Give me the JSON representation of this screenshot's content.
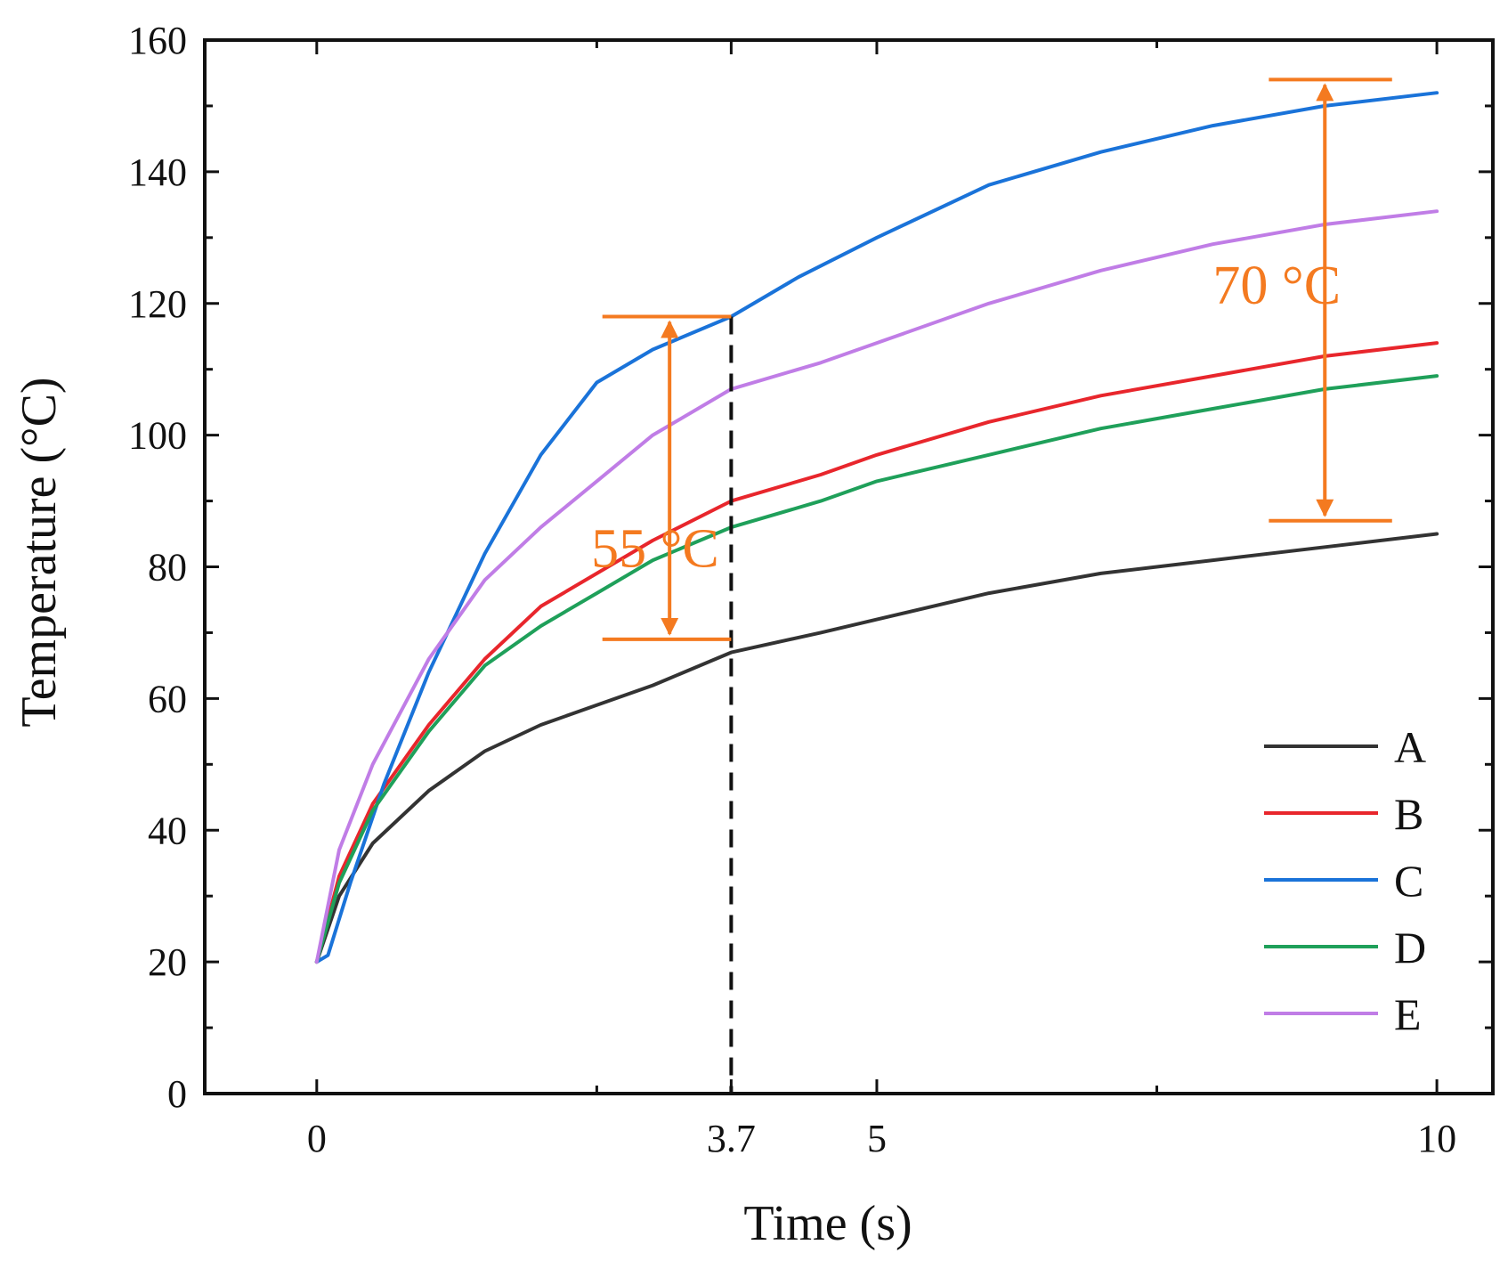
{
  "chart_data": {
    "type": "line",
    "title": "",
    "xlabel": "Time (s)",
    "ylabel": "Temperature (°C)",
    "xlim": [
      -1,
      10.5
    ],
    "ylim": [
      0,
      160
    ],
    "x_ticks": [
      {
        "value": 0,
        "label": "0"
      },
      {
        "value": 3.7,
        "label": "3.7"
      },
      {
        "value": 5,
        "label": "5"
      },
      {
        "value": 10,
        "label": "10"
      }
    ],
    "x_minor_ticks": [
      2.5,
      7.5
    ],
    "y_ticks": [
      {
        "value": 0,
        "label": "0"
      },
      {
        "value": 20,
        "label": "20"
      },
      {
        "value": 40,
        "label": "40"
      },
      {
        "value": 60,
        "label": "60"
      },
      {
        "value": 80,
        "label": "80"
      },
      {
        "value": 100,
        "label": "100"
      },
      {
        "value": 120,
        "label": "120"
      },
      {
        "value": 140,
        "label": "140"
      },
      {
        "value": 160,
        "label": "160"
      }
    ],
    "y_minor_ticks": [
      10,
      30,
      50,
      70,
      90,
      110,
      130,
      150
    ],
    "legend_position": "bottom-right",
    "series": [
      {
        "name": "A",
        "color": "#333333",
        "x": [
          0,
          0.2,
          0.5,
          1.0,
          1.5,
          2.0,
          2.5,
          3.0,
          3.7,
          4.5,
          5.0,
          6.0,
          7.0,
          8.0,
          9.0,
          10.0
        ],
        "y": [
          20,
          30,
          38,
          46,
          52,
          56,
          59,
          62,
          67,
          70,
          72,
          76,
          79,
          81,
          83,
          85
        ]
      },
      {
        "name": "B",
        "color": "#e8262c",
        "x": [
          0,
          0.2,
          0.5,
          1.0,
          1.5,
          2.0,
          2.5,
          3.0,
          3.7,
          4.5,
          5.0,
          6.0,
          7.0,
          8.0,
          9.0,
          10.0
        ],
        "y": [
          20,
          33,
          44,
          56,
          66,
          74,
          79,
          84,
          90,
          94,
          97,
          102,
          106,
          109,
          112,
          114
        ]
      },
      {
        "name": "C",
        "color": "#1a73d9",
        "x": [
          0,
          0.1,
          0.3,
          0.6,
          1.0,
          1.5,
          2.0,
          2.5,
          3.0,
          3.7,
          4.3,
          5.0,
          6.0,
          7.0,
          8.0,
          9.0,
          10.0
        ],
        "y": [
          20,
          21,
          32,
          47,
          64,
          82,
          97,
          108,
          113,
          118,
          124,
          130,
          138,
          143,
          147,
          150,
          152
        ]
      },
      {
        "name": "D",
        "color": "#1fa05a",
        "x": [
          0,
          0.2,
          0.5,
          1.0,
          1.5,
          2.0,
          2.5,
          3.0,
          3.7,
          4.5,
          5.0,
          6.0,
          7.0,
          8.0,
          9.0,
          10.0
        ],
        "y": [
          20,
          32,
          43,
          55,
          65,
          71,
          76,
          81,
          86,
          90,
          93,
          97,
          101,
          104,
          107,
          109
        ]
      },
      {
        "name": "E",
        "color": "#c07de6",
        "x": [
          0,
          0.2,
          0.5,
          1.0,
          1.5,
          2.0,
          2.5,
          3.0,
          3.7,
          4.5,
          5.0,
          6.0,
          7.0,
          8.0,
          9.0,
          10.0
        ],
        "y": [
          20,
          37,
          50,
          66,
          78,
          86,
          93,
          100,
          107,
          111,
          114,
          120,
          125,
          129,
          132,
          134
        ]
      }
    ],
    "annotations": {
      "color": "#f47a20",
      "reference_line": {
        "x": 3.7,
        "y_from": 0,
        "y_to": 118
      },
      "ranges": [
        {
          "label": "55 °C",
          "x": 3.15,
          "x_from": 2.55,
          "x_to": 3.7,
          "y_low": 69,
          "y_high": 118,
          "label_x": 2.45,
          "label_y": 80
        },
        {
          "label": "70 °C",
          "x": 9.0,
          "x_from": 8.5,
          "x_to": 9.6,
          "y_low": 87,
          "y_high": 154,
          "label_x": 8.0,
          "label_y": 120
        }
      ]
    }
  }
}
